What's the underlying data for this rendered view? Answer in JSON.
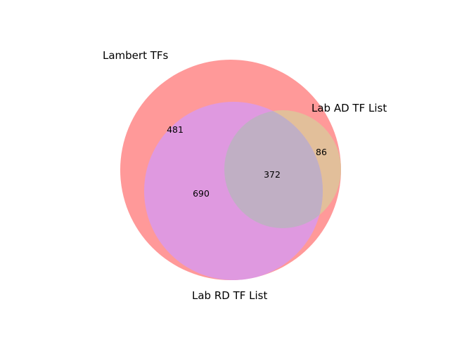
{
  "diagram": {
    "type": "venn3",
    "sets": [
      {
        "name": "Lambert TFs",
        "color": "#ff9999"
      },
      {
        "name": "Lab AD TF List",
        "color": "#e2bf9a"
      },
      {
        "name": "Lab RD TF List",
        "color": "#df99e0"
      }
    ],
    "regions": {
      "lambert_only": "481",
      "lambert_ad_only": "86",
      "lambert_rd_only": "690",
      "all_three": "372"
    },
    "overlap_color": "#c0afc4"
  }
}
